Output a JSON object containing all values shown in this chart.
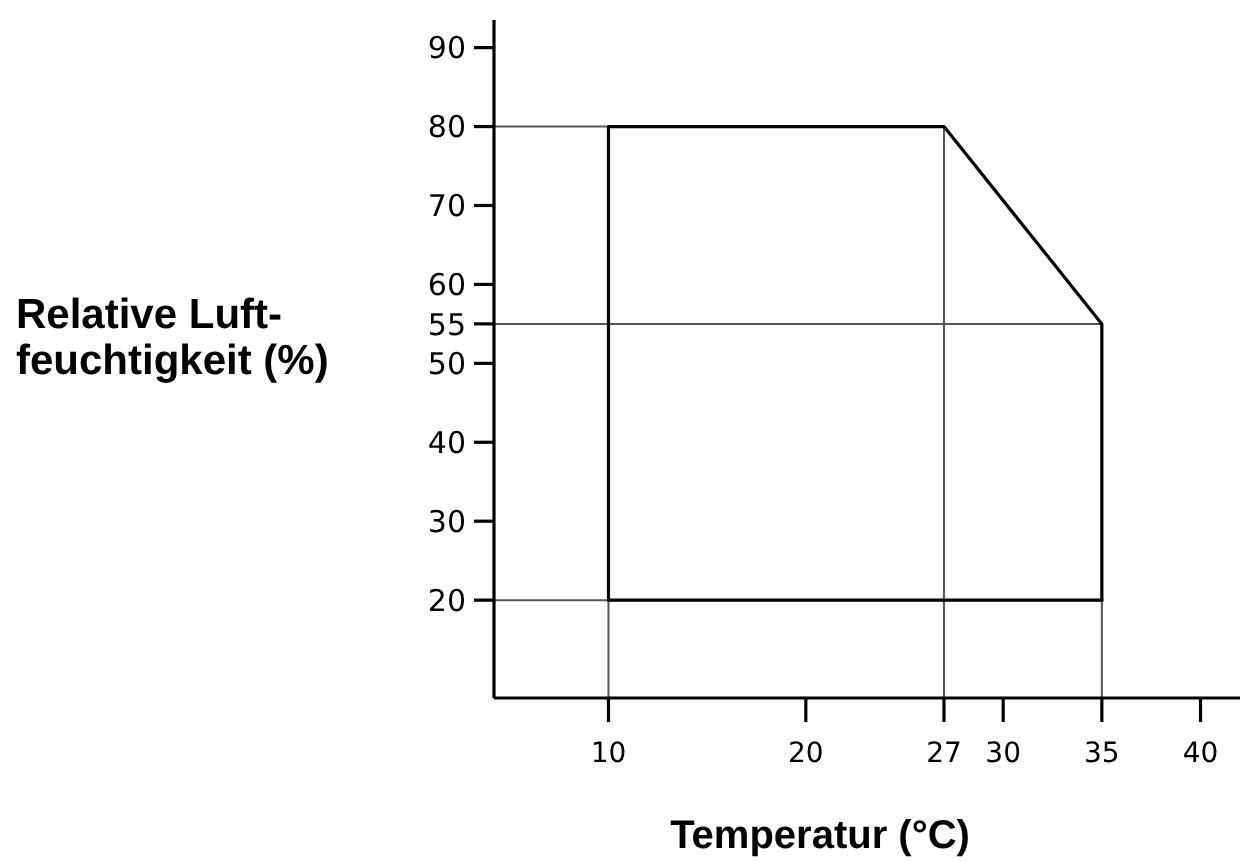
{
  "chart_data": {
    "type": "line",
    "xlabel": "Temperatur (°C)",
    "ylabel": "Relative Luft-\nfeuchtigkeit (%)",
    "series": [
      {
        "color": "#000000",
        "x": [
          10,
          10,
          27,
          35,
          35
        ],
        "values": [
          20,
          80,
          80,
          55,
          20
        ]
      },
      {
        "color": "#000000",
        "x": [
          10,
          35
        ],
        "values": [
          20,
          20
        ]
      }
    ],
    "xlim": [
      4.2,
      42
    ],
    "ylim": [
      7.6,
      93.5
    ],
    "xticks": [
      10,
      20,
      27,
      30,
      35,
      40
    ],
    "yticks": [
      20,
      30,
      40,
      50,
      55,
      60,
      70,
      80,
      90
    ],
    "ref_lines": [
      {
        "axis": "y",
        "value": 80,
        "color": "#555555"
      },
      {
        "axis": "y",
        "value": 55,
        "color": "#555555"
      },
      {
        "axis": "y",
        "value": 20,
        "color": "#555555"
      },
      {
        "axis": "x",
        "value": 10,
        "color": "#555555"
      },
      {
        "axis": "x",
        "value": 27,
        "color": "#555555"
      },
      {
        "axis": "x",
        "value": 35,
        "color": "#555555"
      }
    ],
    "line_style": "solid"
  }
}
